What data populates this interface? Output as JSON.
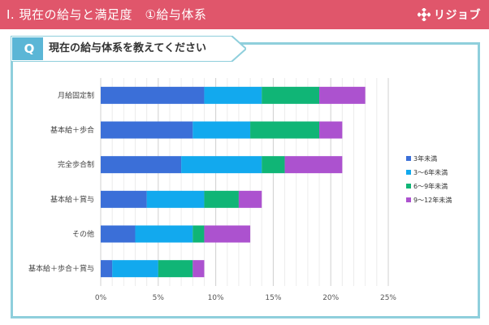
{
  "header": {
    "title": "I. 現在の給与と満足度　①給与体系",
    "brand_name": "リジョブ",
    "brand_icon": "rejob-logo-icon"
  },
  "question": {
    "letter": "Q",
    "text": "現在の給与体系を教えてください"
  },
  "colors": {
    "header": "#e0566b",
    "panel_border": "#8fcfdc",
    "question_accent": "#5bb6d6"
  },
  "chart_data": {
    "type": "bar",
    "orientation": "horizontal",
    "stacked": true,
    "categories": [
      "月給固定制",
      "基本給＋歩合",
      "完全歩合制",
      "基本給＋賞与",
      "その他",
      "基本給＋歩合＋賞与"
    ],
    "series": [
      {
        "name": "3年未満",
        "color": "#3b6fd8",
        "values": [
          9.0,
          8.0,
          7.0,
          4.0,
          3.0,
          1.0
        ]
      },
      {
        "name": "3～6年未満",
        "color": "#12a9ee",
        "values": [
          5.0,
          5.0,
          7.0,
          5.0,
          5.0,
          4.0
        ]
      },
      {
        "name": "6～9年未満",
        "color": "#10b576",
        "values": [
          5.0,
          6.0,
          2.0,
          3.0,
          1.0,
          3.0
        ]
      },
      {
        "name": "9～12年未満",
        "color": "#ac52cf",
        "values": [
          4.0,
          2.0,
          5.0,
          2.0,
          4.0,
          1.0
        ]
      }
    ],
    "xlim": [
      0,
      25
    ],
    "xticks": [
      "0%",
      "5%",
      "10%",
      "15%",
      "20%",
      "25%"
    ],
    "grid": true,
    "legend": "right"
  }
}
